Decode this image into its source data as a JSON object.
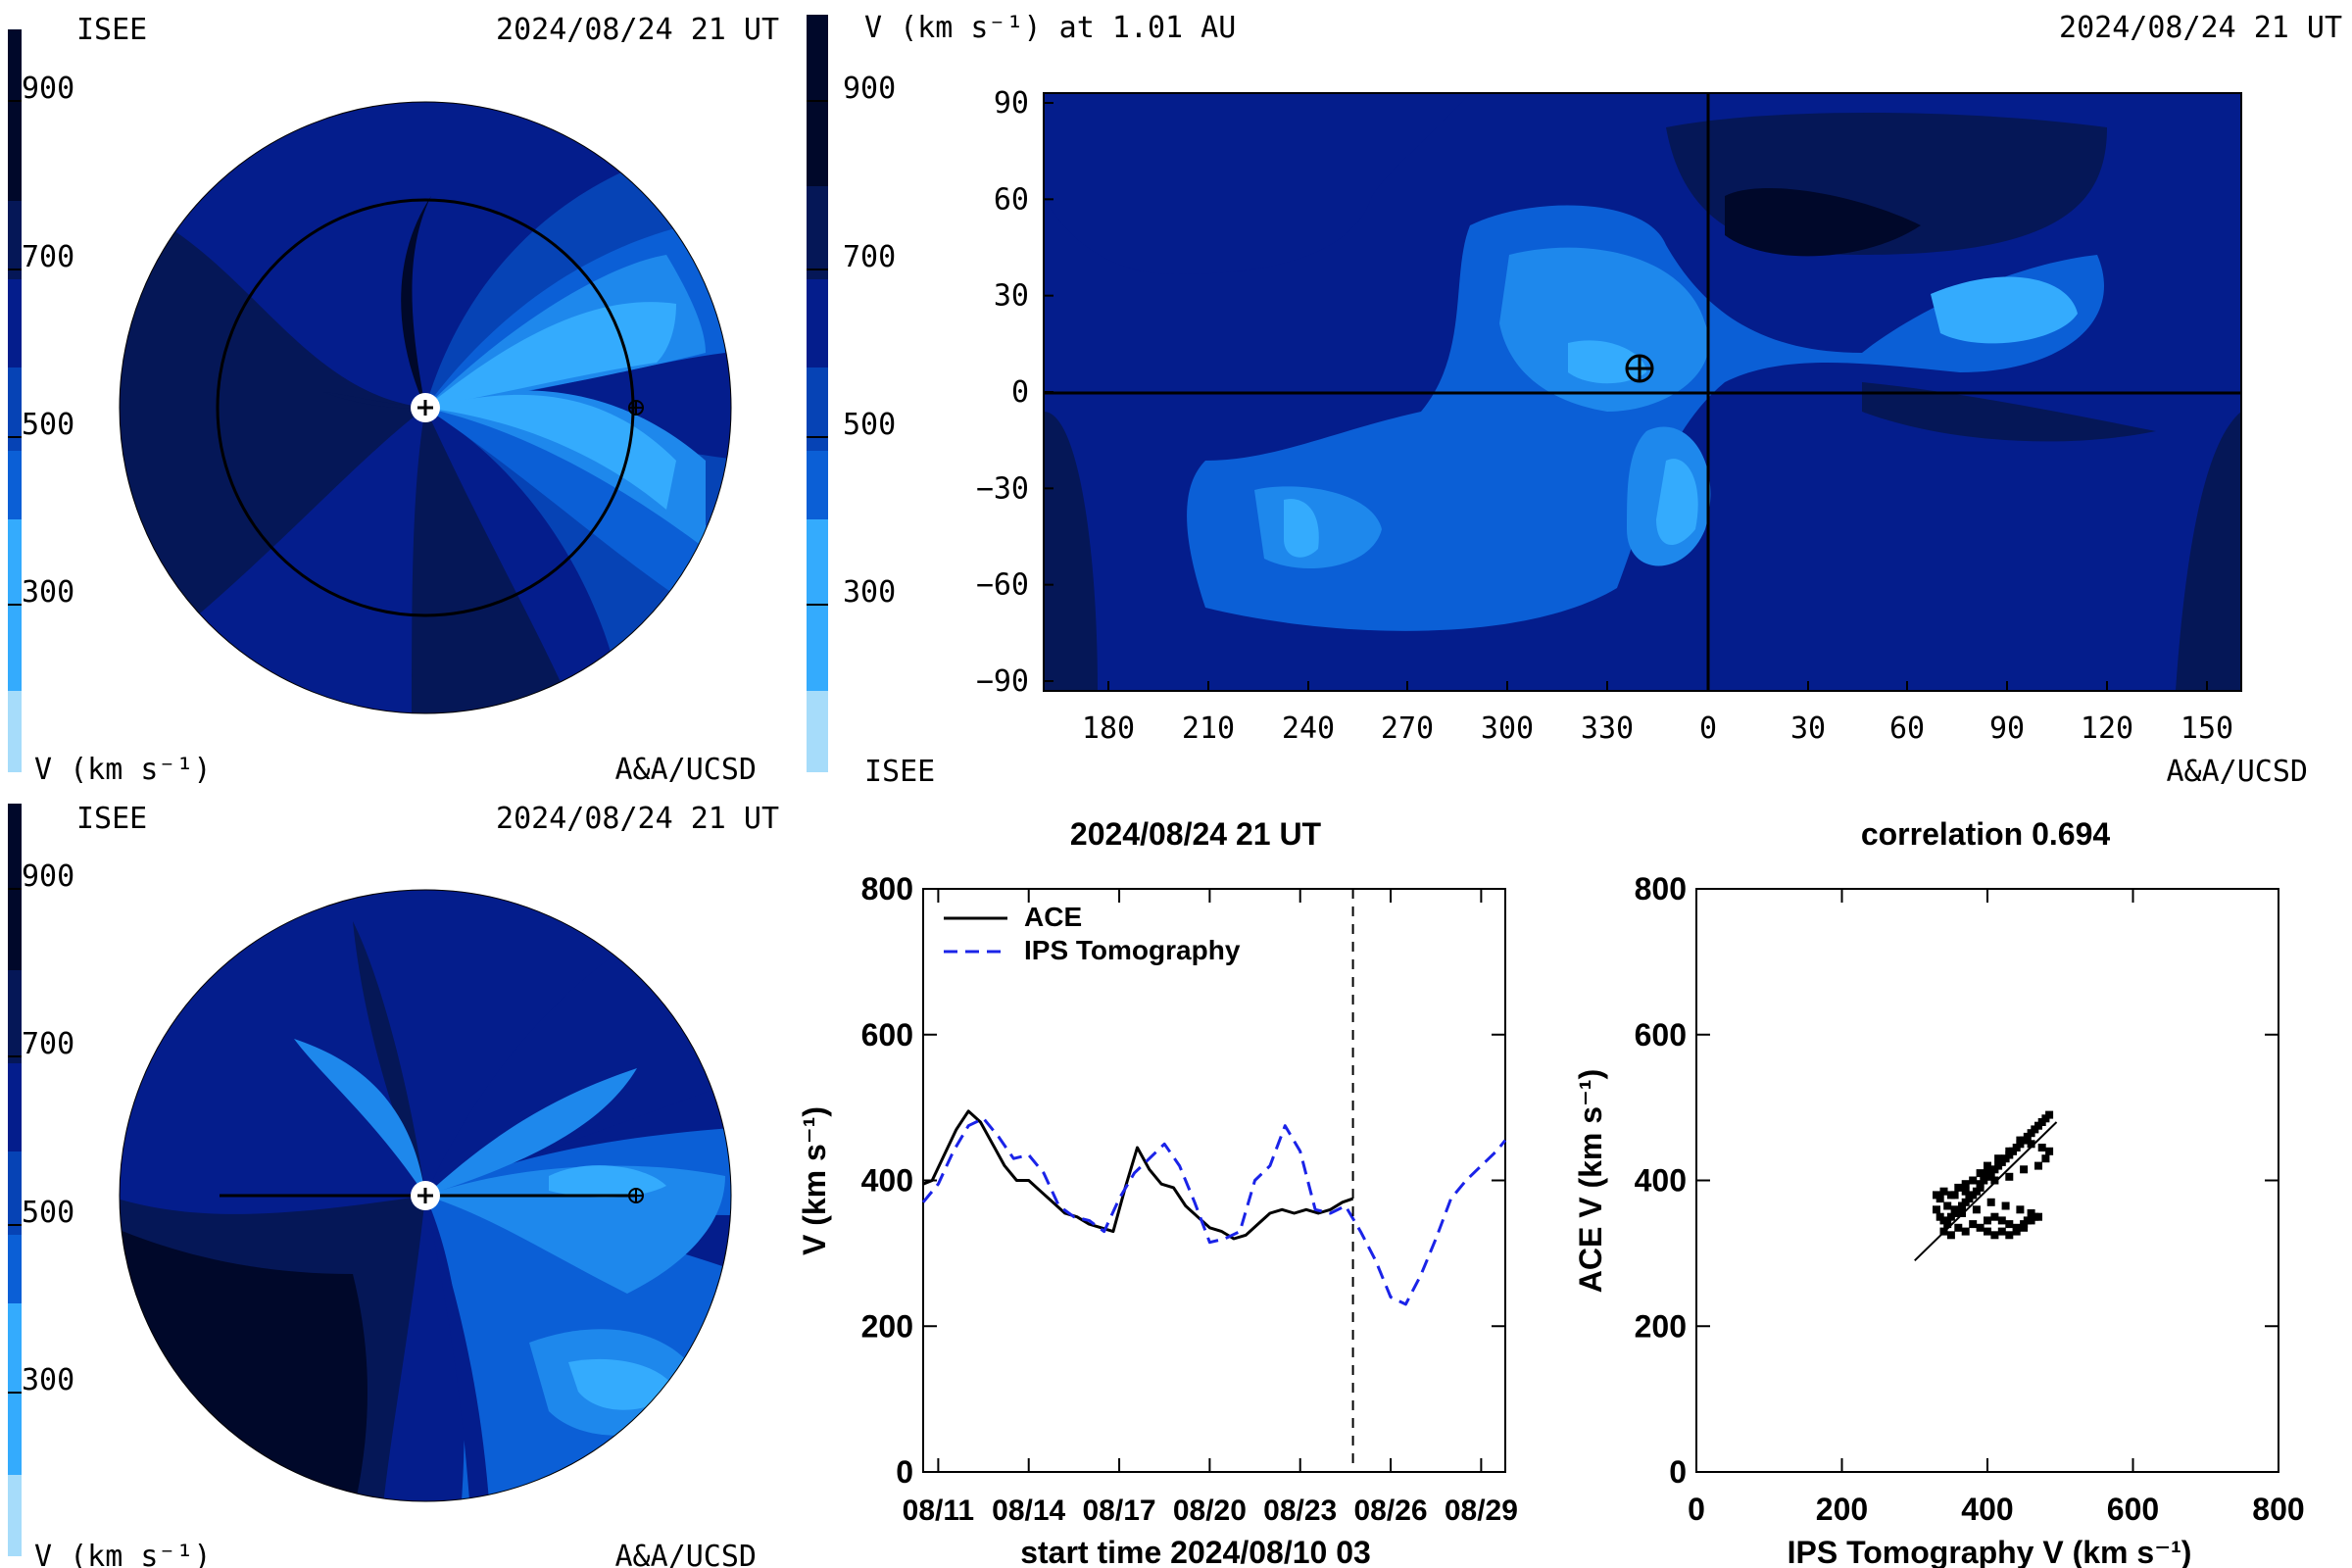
{
  "colorscale": {
    "colors": [
      "#a6dcfa",
      "#34abfd",
      "#1e88ec",
      "#0b5fd6",
      "#0643b5",
      "#041d8c",
      "#051757",
      "#00082a"
    ],
    "tick_labels": [
      "300",
      "500",
      "700",
      "900"
    ]
  },
  "panel_tl": {
    "left_title": "ISEE",
    "right_title": "2024/08/24 21 UT",
    "bottom_left": "V (km s⁻¹)",
    "bottom_right": "A&A/UCSD"
  },
  "panel_tr": {
    "left_title": "V (km s⁻¹) at 1.01 AU",
    "right_title": "2024/08/24 21 UT",
    "bottom_left": "ISEE",
    "bottom_right": "A&A/UCSD",
    "x_ticks": [
      "180",
      "210",
      "240",
      "270",
      "300",
      "330",
      "0",
      "30",
      "60",
      "90",
      "120",
      "150"
    ],
    "y_ticks": [
      "90",
      "60",
      "30",
      "0",
      "−30",
      "−60",
      "−90"
    ]
  },
  "panel_bl": {
    "left_title": "ISEE",
    "right_title": "2024/08/24 21 UT",
    "bottom_left": "V (km s⁻¹)",
    "bottom_right": "A&A/UCSD"
  },
  "chart_data": [
    {
      "type": "line",
      "title": "2024/08/24 21 UT",
      "xlabel": "start time 2024/08/10 03",
      "ylabel": "V (km s⁻¹)",
      "x_ticks": [
        "08/11",
        "08/14",
        "08/17",
        "08/20",
        "08/23",
        "08/26",
        "08/29"
      ],
      "y_ticks": [
        "0",
        "200",
        "400",
        "600",
        "800"
      ],
      "xlim": [
        0.5,
        19.8
      ],
      "ylim": [
        0,
        800
      ],
      "legend_position": "top-left",
      "vline_day": 14.75,
      "series": [
        {
          "name": "ACE",
          "color": "#000000",
          "dash": "solid",
          "x": [
            0.5,
            0.8,
            1.2,
            1.6,
            2.0,
            2.4,
            2.8,
            3.2,
            3.6,
            4.0,
            4.4,
            4.8,
            5.2,
            5.6,
            6.0,
            6.4,
            6.8,
            7.2,
            7.6,
            8.0,
            8.4,
            8.8,
            9.2,
            9.6,
            10.0,
            10.4,
            10.8,
            11.2,
            11.6,
            12.0,
            12.4,
            12.8,
            13.2,
            13.6,
            14.0,
            14.4,
            14.75
          ],
          "y": [
            395,
            400,
            435,
            470,
            495,
            480,
            450,
            420,
            400,
            400,
            385,
            370,
            355,
            350,
            340,
            335,
            330,
            390,
            445,
            415,
            395,
            390,
            365,
            350,
            335,
            330,
            320,
            325,
            340,
            355,
            360,
            355,
            360,
            355,
            360,
            370,
            375
          ]
        },
        {
          "name": "IPS Tomography",
          "color": "#1a23e8",
          "dash": "dashed",
          "x": [
            0.5,
            1.0,
            1.5,
            2.0,
            2.5,
            3.0,
            3.5,
            4.0,
            4.5,
            5.0,
            5.5,
            6.0,
            6.5,
            7.0,
            7.5,
            8.0,
            8.5,
            9.0,
            9.5,
            10.0,
            10.5,
            11.0,
            11.5,
            12.0,
            12.5,
            13.0,
            13.5,
            14.0,
            14.5,
            15.0,
            15.5,
            16.0,
            16.5,
            17.0,
            17.5,
            18.0,
            18.5,
            19.0,
            19.5,
            19.8
          ],
          "y": [
            370,
            395,
            440,
            475,
            485,
            460,
            430,
            435,
            410,
            365,
            350,
            345,
            330,
            375,
            410,
            430,
            450,
            420,
            370,
            315,
            320,
            330,
            400,
            420,
            475,
            440,
            360,
            355,
            365,
            330,
            290,
            240,
            230,
            270,
            320,
            375,
            400,
            420,
            440,
            455
          ]
        }
      ]
    },
    {
      "type": "scatter",
      "title": "correlation 0.694",
      "xlabel": "IPS Tomography V (km s⁻¹)",
      "ylabel": "ACE V (km s⁻¹)",
      "x_ticks": [
        "0",
        "200",
        "400",
        "600",
        "800"
      ],
      "y_ticks": [
        "0",
        "200",
        "400",
        "600",
        "800"
      ],
      "xlim": [
        0,
        800
      ],
      "ylim": [
        0,
        800
      ],
      "fit_line": {
        "x": [
          300,
          495
        ],
        "y": [
          290,
          480
        ]
      },
      "points": {
        "x": [
          330,
          335,
          340,
          345,
          350,
          355,
          360,
          365,
          370,
          375,
          380,
          385,
          390,
          395,
          400,
          405,
          410,
          415,
          420,
          425,
          430,
          435,
          440,
          445,
          450,
          455,
          460,
          465,
          470,
          475,
          480,
          485,
          340,
          350,
          360,
          370,
          380,
          390,
          400,
          410,
          420,
          430,
          440,
          450,
          460,
          470,
          400,
          410,
          420,
          430,
          440,
          450,
          455,
          460,
          465,
          445,
          425,
          405,
          385,
          365,
          345,
          335,
          330,
          340,
          355,
          370,
          390,
          410,
          430,
          450,
          470,
          480,
          485,
          475,
          460,
          445,
          430,
          415,
          400,
          390,
          380,
          370,
          360,
          350
        ],
        "y": [
          360,
          350,
          345,
          340,
          350,
          360,
          355,
          365,
          370,
          375,
          380,
          385,
          395,
          400,
          410,
          405,
          415,
          420,
          425,
          430,
          435,
          440,
          445,
          450,
          455,
          460,
          465,
          470,
          475,
          480,
          485,
          490,
          330,
          325,
          335,
          330,
          340,
          335,
          345,
          350,
          345,
          340,
          335,
          340,
          345,
          350,
          330,
          325,
          330,
          325,
          330,
          335,
          345,
          355,
          350,
          360,
          365,
          370,
          360,
          355,
          365,
          375,
          380,
          385,
          380,
          385,
          390,
          400,
          405,
          415,
          420,
          430,
          440,
          445,
          450,
          455,
          440,
          430,
          420,
          410,
          400,
          395,
          390,
          380
        ]
      }
    }
  ]
}
